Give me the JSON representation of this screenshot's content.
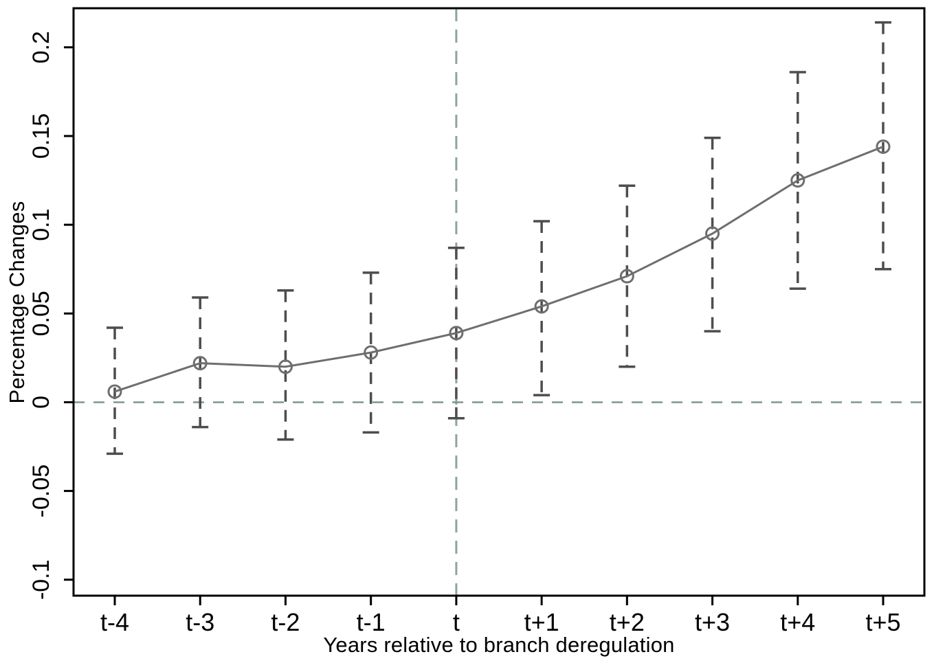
{
  "figure": {
    "background": "#ffffff"
  },
  "chart_data": {
    "type": "line",
    "subtype": "event-study with confidence intervals",
    "title": "",
    "xlabel": "Years relative to branch deregulation",
    "ylabel": "Percentage Changes",
    "categories": [
      "t-4",
      "t-3",
      "t-2",
      "t-1",
      "t",
      "t+1",
      "t+2",
      "t+3",
      "t+4",
      "t+5"
    ],
    "series": [
      {
        "name": "point-estimates",
        "marker": "open-circle",
        "values": [
          0.006,
          0.022,
          0.02,
          0.028,
          0.039,
          0.054,
          0.071,
          0.095,
          0.125,
          0.144
        ]
      }
    ],
    "ci_low": [
      -0.029,
      -0.014,
      -0.021,
      -0.017,
      -0.009,
      0.004,
      0.02,
      0.04,
      0.064,
      0.075
    ],
    "ci_high": [
      0.042,
      0.059,
      0.063,
      0.073,
      0.087,
      0.102,
      0.122,
      0.149,
      0.186,
      0.214
    ],
    "yticks": {
      "values": [
        -0.1,
        -0.05,
        0,
        0.05,
        0.1,
        0.15,
        0.2
      ],
      "labels": [
        "-0.1",
        "-0.05",
        "0",
        "0.05",
        "0.1",
        "0.15",
        "0.2"
      ]
    },
    "ylim": [
      -0.109,
      0.222
    ],
    "reference_lines": {
      "horizontal_at_y": 0,
      "vertical_at_category": "t"
    },
    "grid": false,
    "legend": false,
    "style": {
      "axis_color": "#000000",
      "text_color": "#000000",
      "series_color": "#6e6e6e",
      "ci_color": "#4d4d4d",
      "zero_line_color": "#7e968c",
      "event_line_color": "#8ca69b",
      "background": "#ffffff"
    }
  }
}
